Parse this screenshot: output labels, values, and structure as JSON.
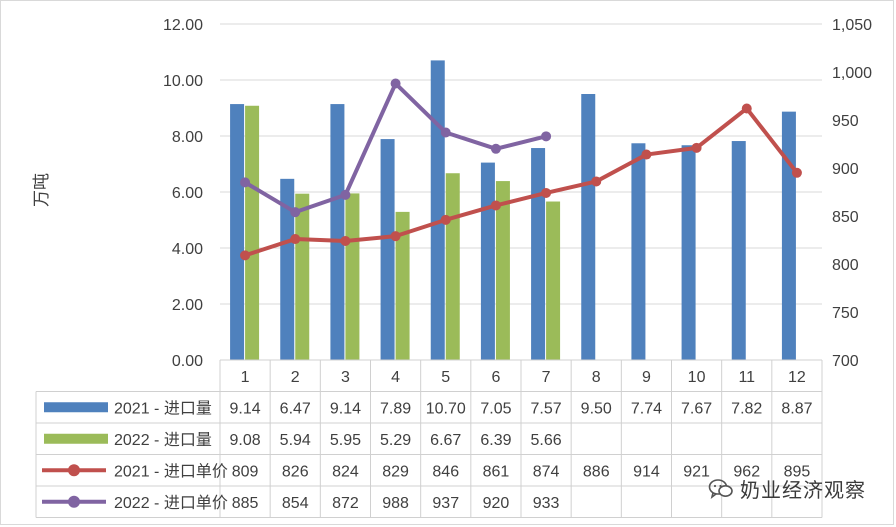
{
  "chart_data": {
    "type": "bar+line",
    "categories": [
      "1",
      "2",
      "3",
      "4",
      "5",
      "6",
      "7",
      "8",
      "9",
      "10",
      "11",
      "12"
    ],
    "ylabel_left": "万吨",
    "ylim_left": [
      0,
      12
    ],
    "yticks_left": [
      "0.00",
      "2.00",
      "4.00",
      "6.00",
      "8.00",
      "10.00",
      "12.00"
    ],
    "ylim_right": [
      700,
      1050
    ],
    "yticks_right": [
      "700",
      "750",
      "800",
      "850",
      "900",
      "950",
      "1,000",
      "1,050"
    ],
    "series": [
      {
        "name": "2021 - 进口量",
        "kind": "bar",
        "axis": "left",
        "color": "#4f81bd",
        "values": [
          9.14,
          6.47,
          9.14,
          7.89,
          10.7,
          7.05,
          7.57,
          9.5,
          7.74,
          7.67,
          7.82,
          8.87
        ],
        "labels": [
          "9.14",
          "6.47",
          "9.14",
          "7.89",
          "10.70",
          "7.05",
          "7.57",
          "9.50",
          "7.74",
          "7.67",
          "7.82",
          "8.87"
        ]
      },
      {
        "name": "2022 - 进口量",
        "kind": "bar",
        "axis": "left",
        "color": "#9bbb59",
        "values": [
          9.08,
          5.94,
          5.95,
          5.29,
          6.67,
          6.39,
          5.66,
          null,
          null,
          null,
          null,
          null
        ],
        "labels": [
          "9.08",
          "5.94",
          "5.95",
          "5.29",
          "6.67",
          "6.39",
          "5.66",
          "",
          "",
          "",
          "",
          ""
        ]
      },
      {
        "name": "2021 - 进口单价",
        "kind": "line",
        "axis": "right",
        "color": "#c0504d",
        "values": [
          809,
          826,
          824,
          829,
          846,
          861,
          874,
          886,
          914,
          921,
          962,
          895
        ],
        "labels": [
          "809",
          "826",
          "824",
          "829",
          "846",
          "861",
          "874",
          "886",
          "914",
          "921",
          "962",
          "895"
        ]
      },
      {
        "name": "2022 - 进口单价",
        "kind": "line",
        "axis": "right",
        "color": "#8064a2",
        "values": [
          885,
          854,
          872,
          988,
          937,
          920,
          933,
          null,
          null,
          null,
          null,
          null
        ],
        "labels": [
          "885",
          "854",
          "872",
          "988",
          "937",
          "920",
          "933",
          "",
          "",
          "",
          "",
          ""
        ]
      }
    ]
  },
  "watermark": {
    "text": "奶业经济观察",
    "icon": "wechat-icon"
  }
}
